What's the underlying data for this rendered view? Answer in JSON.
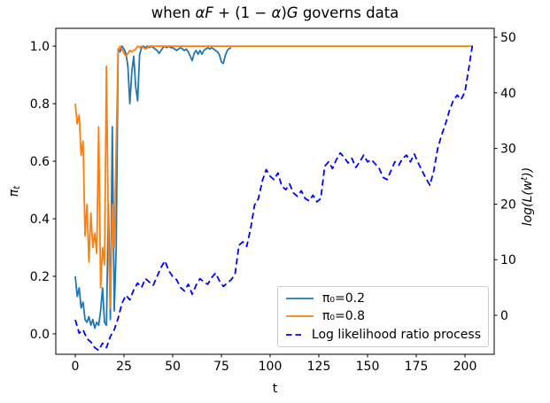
{
  "title": {
    "plain": "when αF + (1 − α)G governs data",
    "segments": [
      {
        "text": "when ",
        "italic": false
      },
      {
        "text": "αF",
        "italic": true
      },
      {
        "text": " + (1 − ",
        "italic": false
      },
      {
        "text": "α",
        "italic": true
      },
      {
        "text": ")",
        "italic": false
      },
      {
        "text": "G",
        "italic": true
      },
      {
        "text": " governs data",
        "italic": false
      }
    ]
  },
  "axes": {
    "x": {
      "label": "t",
      "tick_labels": [
        "0",
        "25",
        "50",
        "75",
        "100",
        "125",
        "150",
        "175",
        "200"
      ],
      "tick_values": [
        0,
        25,
        50,
        75,
        100,
        125,
        150,
        175,
        200
      ]
    },
    "y_left": {
      "label_base": "π",
      "label_sub": "t",
      "tick_labels": [
        "0.0",
        "0.2",
        "0.4",
        "0.6",
        "0.8",
        "1.0"
      ],
      "tick_values": [
        0,
        0.2,
        0.4,
        0.6,
        0.8,
        1.0
      ]
    },
    "y_right": {
      "label_parts": [
        {
          "text": "log(L(w",
          "sup": false
        },
        {
          "text": "t",
          "sup": true
        },
        {
          "text": "))",
          "sup": false
        }
      ],
      "tick_labels": [
        "0",
        "10",
        "20",
        "30",
        "40",
        "50"
      ],
      "tick_values": [
        0,
        10,
        20,
        30,
        40,
        50
      ]
    }
  },
  "legend": {
    "items": [
      {
        "label": "π₀=0.2",
        "color": "#1f77b4",
        "dashed": false
      },
      {
        "label": "π₀=0.8",
        "color": "#ff7f0e",
        "dashed": false
      },
      {
        "label": "Log likelihood ratio process",
        "color": "#0000ff",
        "dashed": true
      }
    ]
  },
  "chart_data": {
    "type": "line",
    "title": "when αF + (1 − α)G governs data",
    "xlabel": "t",
    "ylabel_left": "π_t",
    "ylabel_right": "log(L(w^t))",
    "xlim": [
      -10,
      215
    ],
    "ylim_left": [
      -0.071,
      1.062
    ],
    "ylim_right": [
      -7.0,
      51.6
    ],
    "grid": false,
    "legend_position": "inside lower-right",
    "series": [
      {
        "name": "π0=0.2",
        "axis": "left",
        "color": "#1f77b4",
        "style": "solid",
        "x_start": 0,
        "x_step": 1,
        "values": [
          0.2,
          0.13,
          0.16,
          0.09,
          0.11,
          0.05,
          0.04,
          0.06,
          0.03,
          0.05,
          0.02,
          0.04,
          0.03,
          0.08,
          0.16,
          0.04,
          0.03,
          0.45,
          0.05,
          0.72,
          0.08,
          0.3,
          0.99,
          0.98,
          1.0,
          0.99,
          0.975,
          0.93,
          0.8,
          0.91,
          0.965,
          0.86,
          0.81,
          0.97,
          0.995,
          1.0,
          0.995,
          1.0,
          0.995,
          1.0,
          0.995,
          0.99,
          0.985,
          0.975,
          0.985,
          0.995,
          1.0,
          0.995,
          1.0,
          0.995,
          0.995,
          0.99,
          0.985,
          0.99,
          0.995,
          0.99,
          0.985,
          0.99,
          0.98,
          0.965,
          0.95,
          0.975,
          0.985,
          0.972,
          0.985,
          0.972,
          0.985,
          0.99,
          0.995,
          0.99,
          0.995,
          0.99,
          0.985,
          0.98,
          0.97,
          0.945,
          0.94,
          0.968,
          0.985,
          0.992,
          0.995
        ]
      },
      {
        "name": "π0=0.8",
        "axis": "left",
        "color": "#ff7f0e",
        "style": "solid",
        "x": [
          0,
          1,
          2,
          3,
          4,
          5,
          6,
          7,
          8,
          9,
          10,
          11,
          12,
          13,
          14,
          15,
          16,
          17,
          18,
          19,
          20,
          21,
          22,
          23,
          24,
          25,
          26,
          27,
          28,
          29,
          30,
          31,
          32,
          33,
          34,
          35,
          36,
          37,
          38,
          39,
          40,
          204
        ],
        "values": [
          0.8,
          0.73,
          0.76,
          0.62,
          0.67,
          0.34,
          0.45,
          0.25,
          0.42,
          0.3,
          0.35,
          0.28,
          0.72,
          0.16,
          0.3,
          0.24,
          0.93,
          0.34,
          0.09,
          0.45,
          0.3,
          0.65,
          0.98,
          1.0,
          0.99,
          0.975,
          0.965,
          0.975,
          0.985,
          0.98,
          0.985,
          0.99,
          1.0,
          0.995,
          1.0,
          0.995,
          0.99,
          0.995,
          1.0,
          1.0,
          1.0,
          1.0
        ]
      },
      {
        "name": "Log likelihood ratio process",
        "axis": "right",
        "color": "#0000ff",
        "style": "dashed",
        "x_start": 0,
        "x_step": 2,
        "values": [
          -0.8,
          -3.2,
          -2.6,
          -4.2,
          -4.8,
          -5.8,
          -6.3,
          -5.0,
          -5.8,
          -3.8,
          -2.6,
          -0.5,
          2.2,
          3.6,
          2.8,
          4.6,
          5.8,
          5.0,
          6.6,
          6.0,
          5.4,
          7.0,
          8.6,
          9.8,
          8.0,
          7.0,
          6.4,
          5.0,
          4.4,
          5.6,
          3.8,
          5.4,
          6.6,
          6.0,
          5.6,
          6.8,
          7.6,
          6.2,
          5.2,
          5.8,
          6.4,
          7.4,
          12.6,
          13.2,
          12.4,
          15.6,
          19.8,
          21.0,
          24.2,
          26.2,
          25.0,
          24.4,
          25.6,
          23.2,
          22.6,
          23.6,
          22.0,
          21.4,
          22.4,
          21.0,
          20.6,
          21.6,
          20.4,
          21.0,
          26.8,
          27.6,
          26.4,
          28.0,
          29.2,
          28.4,
          27.4,
          28.2,
          26.6,
          27.6,
          28.8,
          27.6,
          28.0,
          27.2,
          26.4,
          24.8,
          24.4,
          26.0,
          27.6,
          27.0,
          28.2,
          28.8,
          27.6,
          29.0,
          27.4,
          26.0,
          24.6,
          23.4,
          26.0,
          30.0,
          32.4,
          34.4,
          36.8,
          38.6,
          39.6,
          38.8,
          40.2,
          44.5,
          49.0
        ]
      }
    ]
  }
}
